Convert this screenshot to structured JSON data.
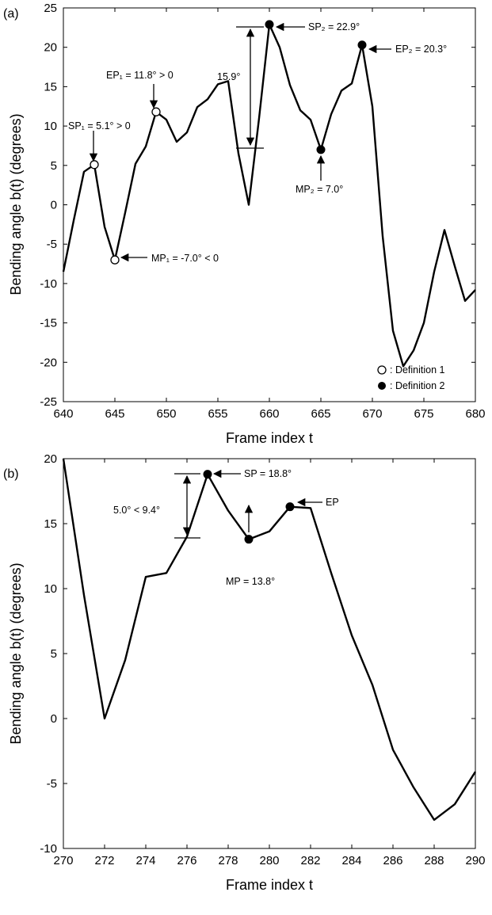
{
  "chart_data": [
    {
      "type": "line",
      "panel_label": "(a)",
      "xlabel": "Frame index t",
      "ylabel": "Bending angle b(t) (degrees)",
      "xlim": [
        640,
        680
      ],
      "ylim": [
        -25,
        25
      ],
      "xticks": [
        640,
        645,
        650,
        655,
        660,
        665,
        670,
        675,
        680
      ],
      "yticks": [
        -25,
        -20,
        -15,
        -10,
        -5,
        0,
        5,
        10,
        15,
        20,
        25
      ],
      "series": [
        {
          "x": [
            640,
            641,
            642,
            643,
            644,
            645,
            646,
            647,
            648,
            649,
            650,
            651,
            652,
            653,
            654,
            655,
            656,
            657,
            658,
            659,
            660,
            661,
            662,
            663,
            664,
            665,
            666,
            667,
            668,
            669,
            670,
            671,
            672,
            673,
            674,
            675,
            676,
            677,
            678,
            679,
            680
          ],
          "y": [
            -8.5,
            -2.0,
            4.2,
            5.1,
            -2.8,
            -7.0,
            -1.0,
            5.2,
            7.4,
            11.8,
            10.8,
            8.0,
            9.2,
            12.4,
            13.4,
            15.3,
            15.7,
            6.5,
            0.0,
            11.0,
            22.9,
            20.0,
            15.2,
            12.0,
            10.8,
            7.0,
            11.5,
            14.5,
            15.4,
            20.3,
            12.5,
            -4.0,
            -16.0,
            -20.5,
            -18.5,
            -15.0,
            -8.5,
            -3.2,
            -7.8,
            -12.2,
            -10.8
          ]
        }
      ],
      "markers": [
        {
          "label": "SP1",
          "x": 643,
          "y": 5.1,
          "def": 1
        },
        {
          "label": "MP1",
          "x": 645,
          "y": -7.0,
          "def": 1
        },
        {
          "label": "EP1",
          "x": 649,
          "y": 11.8,
          "def": 1
        },
        {
          "label": "SP2",
          "x": 660,
          "y": 22.9,
          "def": 2
        },
        {
          "label": "MP2",
          "x": 665,
          "y": 7.0,
          "def": 2
        },
        {
          "label": "EP2",
          "x": 669,
          "y": 20.3,
          "def": 2
        }
      ],
      "annotations": {
        "sp1": "SP₁ = 5.1° > 0",
        "ep1": "EP₁ = 11.8° > 0",
        "mp1": "MP₁ = -7.0° < 0",
        "sp2": "SP₂ = 22.9°",
        "mp2": "MP₂ = 7.0°",
        "ep2": "EP₂ = 20.3°",
        "diff": "15.9°"
      },
      "legend": {
        "placement": "bottom-right",
        "items": [
          {
            "label": ": Definition 1",
            "marker": "open-circle"
          },
          {
            "label": ": Definition 2",
            "marker": "filled-circle"
          }
        ]
      }
    },
    {
      "type": "line",
      "panel_label": "(b)",
      "xlabel": "Frame index t",
      "ylabel": "Bending angle b(t) (degrees)",
      "xlim": [
        270,
        290
      ],
      "ylim": [
        -10,
        20
      ],
      "xticks": [
        270,
        272,
        274,
        276,
        278,
        280,
        282,
        284,
        286,
        288,
        290
      ],
      "yticks": [
        -10,
        -5,
        0,
        5,
        10,
        15,
        20
      ],
      "series": [
        {
          "x": [
            270,
            271,
            272,
            273,
            274,
            275,
            276,
            277,
            278,
            279,
            280,
            281,
            282,
            283,
            284,
            285,
            286,
            287,
            288,
            289,
            290
          ],
          "y": [
            20.0,
            9.5,
            0.0,
            4.5,
            10.9,
            11.2,
            14.0,
            18.8,
            16.0,
            13.8,
            14.4,
            16.3,
            16.2,
            11.2,
            6.4,
            2.6,
            -2.4,
            -5.3,
            -7.8,
            -6.6,
            -4.1
          ]
        }
      ],
      "markers": [
        {
          "label": "SP",
          "x": 277,
          "y": 18.8,
          "def": 2
        },
        {
          "label": "MP",
          "x": 279,
          "y": 13.8,
          "def": 2
        },
        {
          "label": "EP",
          "x": 281,
          "y": 16.3,
          "def": 2
        }
      ],
      "annotations": {
        "sp": "SP = 18.8°",
        "mp": "MP = 13.8°",
        "ep": "EP",
        "diff": "5.0° < 9.4°"
      }
    }
  ]
}
